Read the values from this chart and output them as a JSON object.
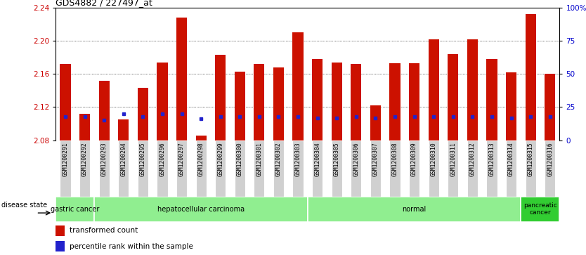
{
  "title": "GDS4882 / 227497_at",
  "samples": [
    "GSM1200291",
    "GSM1200292",
    "GSM1200293",
    "GSM1200294",
    "GSM1200295",
    "GSM1200296",
    "GSM1200297",
    "GSM1200298",
    "GSM1200299",
    "GSM1200300",
    "GSM1200301",
    "GSM1200302",
    "GSM1200303",
    "GSM1200304",
    "GSM1200305",
    "GSM1200306",
    "GSM1200307",
    "GSM1200308",
    "GSM1200309",
    "GSM1200310",
    "GSM1200311",
    "GSM1200312",
    "GSM1200313",
    "GSM1200314",
    "GSM1200315",
    "GSM1200316"
  ],
  "transformed_count": [
    2.172,
    2.112,
    2.152,
    2.105,
    2.143,
    2.174,
    2.228,
    2.086,
    2.183,
    2.163,
    2.172,
    2.168,
    2.21,
    2.178,
    2.174,
    2.172,
    2.122,
    2.173,
    2.173,
    2.202,
    2.184,
    2.202,
    2.178,
    2.162,
    2.232,
    2.16
  ],
  "percentile_rank": [
    18,
    18,
    15,
    20,
    18,
    20,
    20,
    16,
    18,
    18,
    18,
    18,
    18,
    17,
    17,
    18,
    17,
    18,
    18,
    18,
    18,
    18,
    18,
    17,
    18,
    18
  ],
  "disease_groups": [
    {
      "label": "gastric cancer",
      "start": 0,
      "end": 2
    },
    {
      "label": "hepatocellular carcinoma",
      "start": 2,
      "end": 13
    },
    {
      "label": "normal",
      "start": 13,
      "end": 24
    },
    {
      "label": "pancreatic\ncancer",
      "start": 24,
      "end": 26
    }
  ],
  "y_min": 2.08,
  "y_max": 2.24,
  "y_ticks_left": [
    2.08,
    2.12,
    2.16,
    2.2,
    2.24
  ],
  "y_ticks_right": [
    0,
    25,
    50,
    75,
    100
  ],
  "bar_color": "#CC1100",
  "dot_color": "#2222CC",
  "bar_width": 0.55,
  "tick_label_color_left": "#CC0000",
  "tick_label_color_right": "#0000CC",
  "light_green": "#90EE90",
  "dark_green": "#32CD32",
  "gray_box": "#D0D0D0"
}
